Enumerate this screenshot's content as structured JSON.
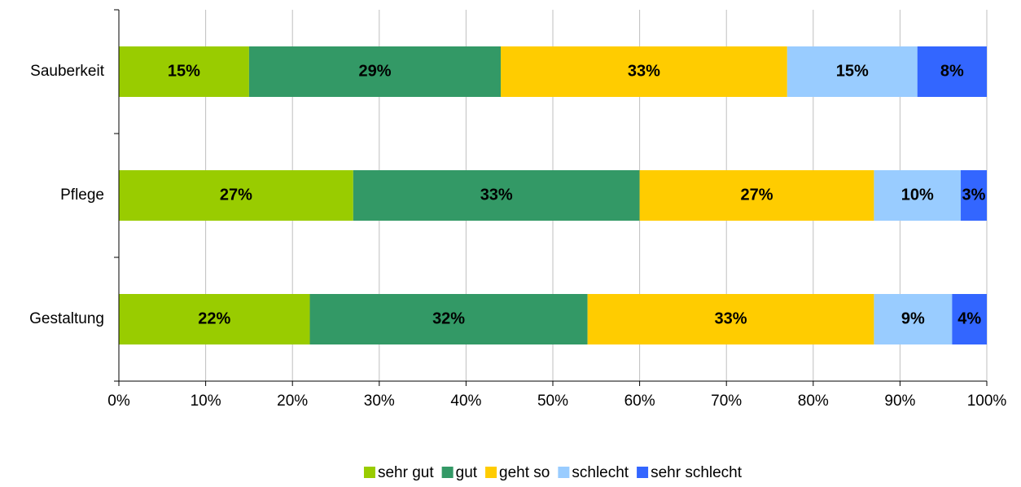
{
  "chart_data": {
    "type": "stacked-barh",
    "categories": [
      "Sauberkeit",
      "Pflege",
      "Gestaltung"
    ],
    "series": [
      {
        "name": "sehr gut",
        "color": "#99cc00",
        "values": [
          15,
          27,
          22
        ],
        "value_labels": [
          "15%",
          "27%",
          "22%"
        ]
      },
      {
        "name": "gut",
        "color": "#339966",
        "values": [
          29,
          33,
          32
        ],
        "value_labels": [
          "29%",
          "33%",
          "32%"
        ]
      },
      {
        "name": "geht so",
        "color": "#ffcc00",
        "values": [
          33,
          27,
          33
        ],
        "value_labels": [
          "33%",
          "27%",
          "33%"
        ]
      },
      {
        "name": "schlecht",
        "color": "#99ccff",
        "values": [
          15,
          10,
          9
        ],
        "value_labels": [
          "15%",
          "10%",
          "9%"
        ]
      },
      {
        "name": "sehr schlecht",
        "color": "#3366ff",
        "values": [
          8,
          3,
          4
        ],
        "value_labels": [
          "8%",
          "3%",
          "4%"
        ]
      }
    ],
    "xlim": [
      0,
      100
    ],
    "xticks": [
      {
        "value": 0,
        "label": "0%"
      },
      {
        "value": 10,
        "label": "10%"
      },
      {
        "value": 20,
        "label": "20%"
      },
      {
        "value": 30,
        "label": "30%"
      },
      {
        "value": 40,
        "label": "40%"
      },
      {
        "value": 50,
        "label": "50%"
      },
      {
        "value": 60,
        "label": "60%"
      },
      {
        "value": 70,
        "label": "70%"
      },
      {
        "value": 80,
        "label": "80%"
      },
      {
        "value": 90,
        "label": "90%"
      },
      {
        "value": 100,
        "label": "100%"
      }
    ],
    "grid": true,
    "legend": "bottom"
  }
}
